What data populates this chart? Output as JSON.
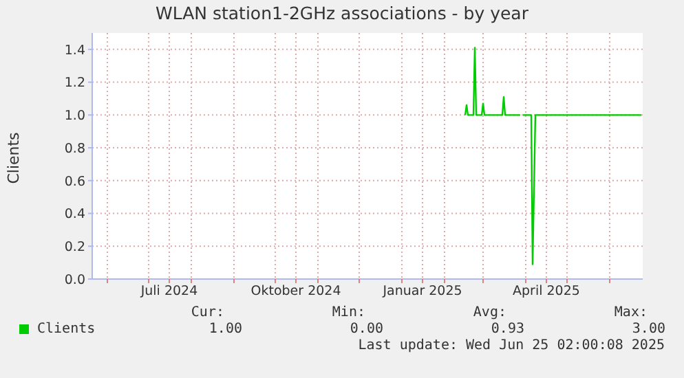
{
  "chart_data": {
    "type": "line",
    "title": "WLAN station1-2GHz associations - by year",
    "ylabel": "Clients",
    "x": [
      "2025-02-16",
      "2025-02-17",
      "2025-02-18",
      "2025-02-22",
      "2025-02-23",
      "2025-02-24",
      "2025-02-28",
      "2025-03-01",
      "2025-03-02",
      "2025-03-15",
      "2025-03-16",
      "2025-03-17",
      "2025-03-28",
      "2025-03-29",
      "2025-03-30",
      "2025-04-05",
      "2025-04-06",
      "2025-04-08",
      "2025-06-24"
    ],
    "series": [
      {
        "name": "Clients",
        "color": "#00cc00",
        "values": [
          1.0,
          1.06,
          1.0,
          1.0,
          1.41,
          1.0,
          1.0,
          1.07,
          1.0,
          1.0,
          1.11,
          1.0,
          1.0,
          null,
          1.0,
          1.0,
          0.09,
          1.0,
          1.0
        ]
      }
    ],
    "xlim": [
      "2024-05-21",
      "2025-06-25"
    ],
    "xticks": [
      {
        "value": "2024-06-01",
        "label": null
      },
      {
        "value": "2024-07-01",
        "label": null
      },
      {
        "value": "2024-07-16",
        "label": "Juli 2024"
      },
      {
        "value": "2024-08-01",
        "label": null
      },
      {
        "value": "2024-09-01",
        "label": null
      },
      {
        "value": "2024-10-01",
        "label": null
      },
      {
        "value": "2024-10-16",
        "label": "Oktober 2024"
      },
      {
        "value": "2024-11-01",
        "label": null
      },
      {
        "value": "2024-12-01",
        "label": null
      },
      {
        "value": "2025-01-01",
        "label": null
      },
      {
        "value": "2025-01-16",
        "label": "Januar 2025"
      },
      {
        "value": "2025-02-01",
        "label": null
      },
      {
        "value": "2025-03-01",
        "label": null
      },
      {
        "value": "2025-04-01",
        "label": null
      },
      {
        "value": "2025-04-16",
        "label": "April 2025"
      },
      {
        "value": "2025-05-01",
        "label": null
      },
      {
        "value": "2025-06-01",
        "label": null
      }
    ],
    "ylim": [
      0,
      1.5
    ],
    "yticks": [
      {
        "value": 0,
        "label": "0.0"
      },
      {
        "value": 0.2,
        "label": "0.2"
      },
      {
        "value": 0.4,
        "label": "0.4"
      },
      {
        "value": 0.6,
        "label": "0.6"
      },
      {
        "value": 0.8,
        "label": "0.8"
      },
      {
        "value": 1,
        "label": "1.0"
      },
      {
        "value": 1.2,
        "label": "1.2"
      },
      {
        "value": 1.4,
        "label": "1.4"
      }
    ],
    "grid": true,
    "legend": "bottom",
    "marker": "none",
    "line_style": "solid",
    "annotations": [
      "Cur:",
      "Min:",
      "Avg:",
      "Max:",
      "1.00",
      "0.00",
      "0.93",
      "3.00",
      "Last update: Wed Jun 25 02:00:08 2025"
    ]
  }
}
